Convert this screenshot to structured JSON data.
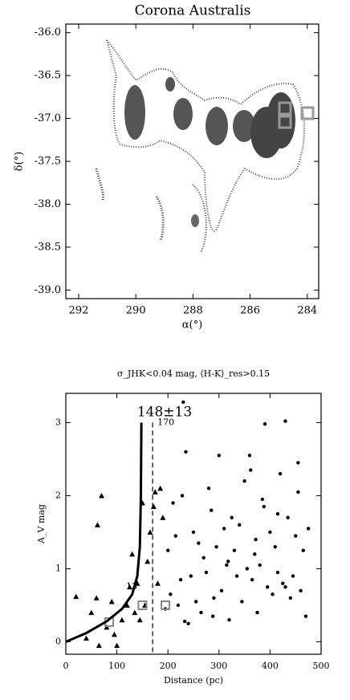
{
  "chart_data": [
    {
      "type": "map",
      "title": "Corona Australis",
      "x_label": "α(°)",
      "y_label": "δ(°)",
      "xlim": [
        292.45,
        283.6
      ],
      "ylim": [
        -39.1,
        -35.9
      ],
      "xticks": [
        292,
        290,
        288,
        286,
        284
      ],
      "yticks": [
        {
          "value": -36,
          "label": "-36.0"
        },
        {
          "value": -36.5,
          "label": "-36.5"
        },
        {
          "value": -37,
          "label": "-37.0"
        },
        {
          "value": -37.5,
          "label": "-37.5"
        },
        {
          "value": -38,
          "label": "-38.0"
        },
        {
          "value": -38.5,
          "label": "-38.5"
        },
        {
          "value": -39,
          "label": "-39.0"
        }
      ]
    },
    {
      "type": "scatter",
      "title": "σ_JHK<0.04 mag, ⟨H-K⟩_res>0.15",
      "x_label": "Distance (pc)",
      "y_label": "A_V mag",
      "fit_label": "148±13",
      "vline": 170,
      "annotations": [
        "13"
      ],
      "xlim": [
        0,
        500
      ],
      "ylim": [
        -0.17,
        3.4
      ],
      "xticks": [
        0,
        100,
        200,
        300,
        400,
        500
      ],
      "yticks": [
        0,
        1,
        2,
        3
      ],
      "series": [
        {
          "marker": "triangle",
          "color": "#000",
          "x": [
            20,
            40,
            50,
            60,
            62,
            70,
            65,
            80,
            90,
            95,
            100,
            110,
            120,
            125,
            130,
            135,
            140,
            145,
            150,
            155,
            160,
            165,
            172,
            175,
            185,
            180,
            190
          ],
          "values": [
            0.62,
            0.05,
            0.4,
            0.6,
            1.6,
            2.0,
            -0.05,
            0.2,
            0.55,
            0.1,
            -0.05,
            0.3,
            0.5,
            0.75,
            1.2,
            0.4,
            0.8,
            0.3,
            1.9,
            0.5,
            1.1,
            1.5,
            1.85,
            2.05,
            2.1,
            0.8,
            1.7
          ]
        },
        {
          "marker": "dot",
          "color": "#000",
          "x": [
            195,
            200,
            205,
            210,
            215,
            220,
            225,
            230,
            235,
            240,
            245,
            250,
            255,
            260,
            265,
            270,
            275,
            280,
            285,
            290,
            295,
            300,
            305,
            310,
            315,
            320,
            325,
            330,
            335,
            340,
            345,
            350,
            355,
            360,
            365,
            370,
            375,
            380,
            385,
            390,
            395,
            400,
            405,
            410,
            415,
            420,
            425,
            430,
            435,
            440,
            445,
            450,
            455,
            460,
            465,
            470,
            475,
            233,
            288,
            362,
            388,
            430,
            228,
            318,
            372,
            415,
            455
          ],
          "values": [
            0.45,
            1.25,
            0.65,
            1.9,
            1.45,
            0.5,
            0.85,
            3.28,
            2.6,
            0.25,
            0.9,
            1.5,
            0.55,
            1.35,
            0.4,
            1.15,
            0.95,
            2.1,
            1.8,
            0.6,
            1.3,
            2.55,
            0.7,
            1.55,
            1.05,
            0.3,
            1.7,
            1.25,
            0.9,
            1.6,
            0.55,
            2.2,
            1.0,
            2.55,
            0.85,
            1.2,
            0.4,
            1.05,
            1.95,
            2.98,
            0.75,
            1.5,
            0.65,
            1.3,
            0.95,
            2.3,
            0.8,
            3.02,
            1.7,
            0.6,
            0.9,
            1.45,
            2.45,
            0.7,
            1.25,
            0.35,
            1.55,
            0.28,
            0.35,
            2.35,
            1.85,
            0.75,
            2.0,
            1.1,
            1.4,
            1.75,
            2.05
          ]
        },
        {
          "marker": "square",
          "color": "#888",
          "x": [
            85,
            150,
            195
          ],
          "values": [
            0.27,
            0.5,
            0.5
          ]
        },
        {
          "marker": "line",
          "color": "#000",
          "x": [
            0,
            40,
            80,
            110,
            130,
            140,
            145,
            147,
            148
          ],
          "values": [
            0,
            0.12,
            0.28,
            0.45,
            0.65,
            0.9,
            1.3,
            2.0,
            3.0
          ]
        }
      ]
    }
  ]
}
